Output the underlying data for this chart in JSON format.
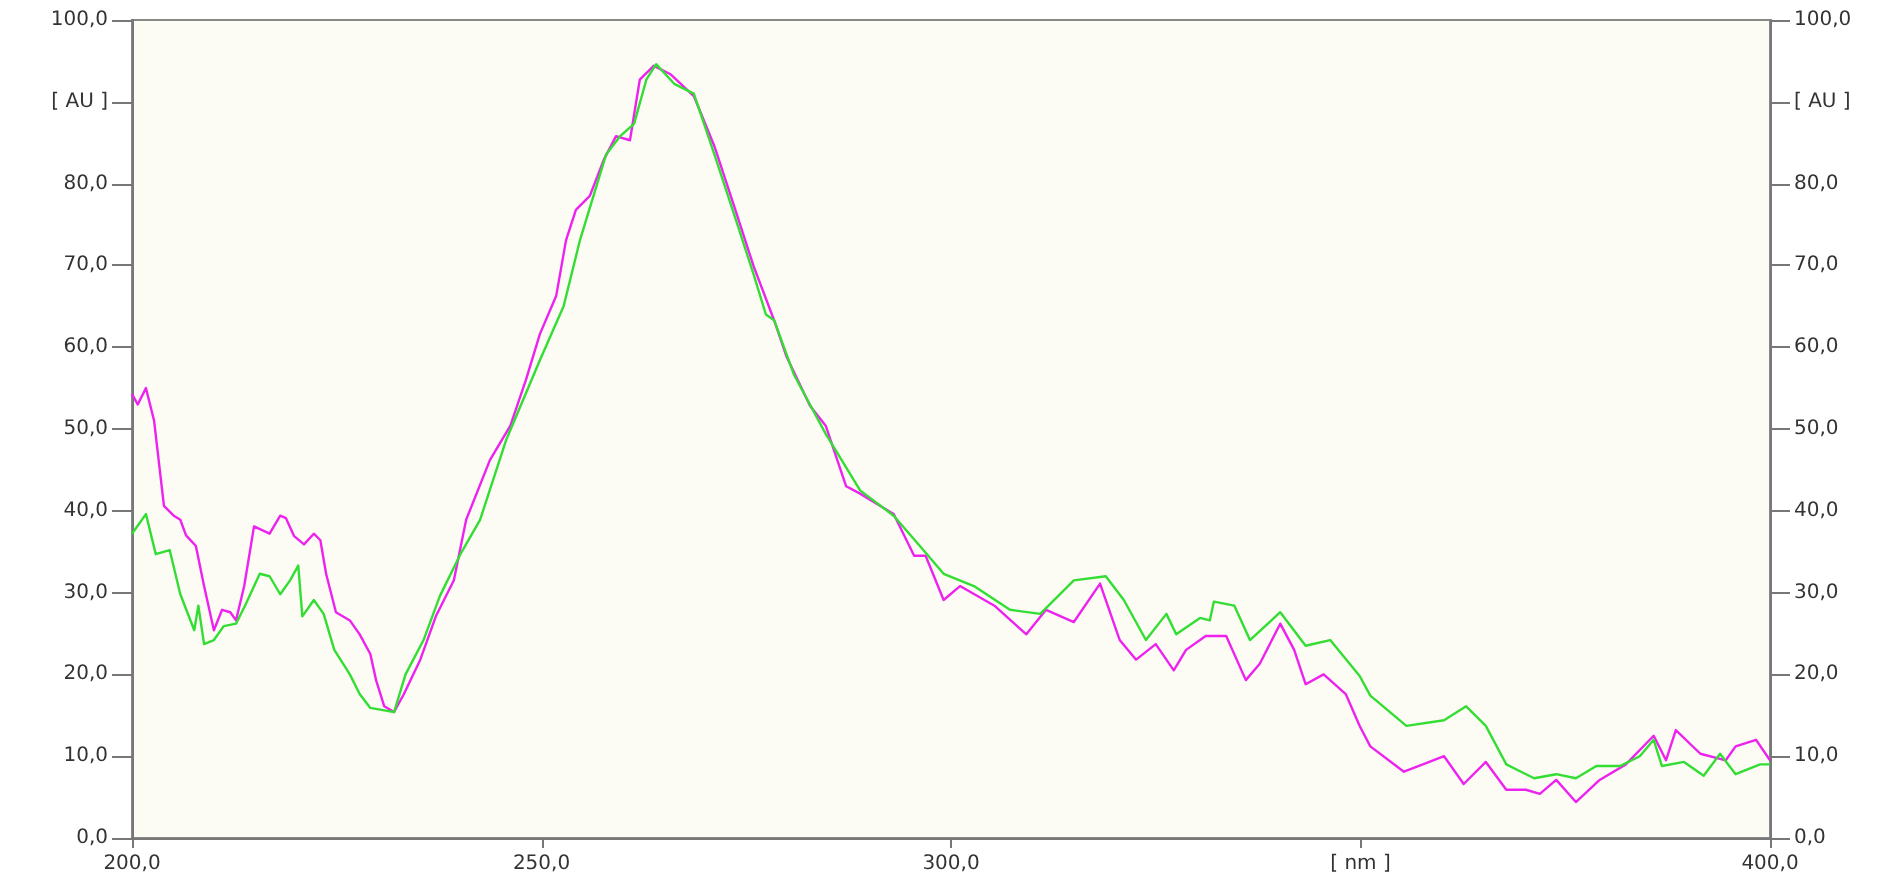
{
  "chart_data": {
    "type": "line",
    "xlim": [
      200,
      400
    ],
    "xticks": [
      {
        "value": 200,
        "label": "200,0"
      },
      {
        "value": 250,
        "label": "250,0"
      },
      {
        "value": 300,
        "label": "300,0"
      },
      {
        "value": 350,
        "label": "[ nm ]"
      },
      {
        "value": 400,
        "label": "400,0"
      }
    ],
    "ylim": [
      0,
      100
    ],
    "yticks": [
      {
        "value": 0,
        "label": "0,0"
      },
      {
        "value": 10,
        "label": "10,0"
      },
      {
        "value": 20,
        "label": "20,0"
      },
      {
        "value": 30,
        "label": "30,0"
      },
      {
        "value": 40,
        "label": "40,0"
      },
      {
        "value": 50,
        "label": "50,0"
      },
      {
        "value": 60,
        "label": "60,0"
      },
      {
        "value": 70,
        "label": "70,0"
      },
      {
        "value": 80,
        "label": "80,0"
      },
      {
        "value": 90,
        "label": "[ AU ]"
      },
      {
        "value": 100,
        "label": "100,0"
      }
    ],
    "y2lim": [
      0,
      100
    ],
    "y2ticks": [
      {
        "value": 0,
        "label": "0,0"
      },
      {
        "value": 10,
        "label": "10,0"
      },
      {
        "value": 20,
        "label": "20,0"
      },
      {
        "value": 30,
        "label": "30,0"
      },
      {
        "value": 40,
        "label": "40,0"
      },
      {
        "value": 50,
        "label": "50,0"
      },
      {
        "value": 60,
        "label": "60,0"
      },
      {
        "value": 70,
        "label": "70,0"
      },
      {
        "value": 80,
        "label": "80,0"
      },
      {
        "value": 90,
        "label": "[ AU ]"
      },
      {
        "value": 100,
        "label": "100,0"
      }
    ],
    "grid": false,
    "marker": "none",
    "line_style": "solid",
    "series": [
      {
        "color": "#ee22ee",
        "x": [
          200,
          200.7,
          201.7,
          202.7,
          203.9,
          205.1,
          205.9,
          206.6,
          207.8,
          208.8,
          210,
          211,
          212,
          212.7,
          213.7,
          214.9,
          216.8,
          218.1,
          218.8,
          219.8,
          221,
          222.2,
          223,
          223.7,
          224.9,
          226.6,
          227.8,
          229.1,
          229.8,
          230.8,
          232,
          233.2,
          235.2,
          237.1,
          239.3,
          240.8,
          243.7,
          246.2,
          248.1,
          249.8,
          251.8,
          253,
          254.2,
          255.9,
          257.6,
          259.1,
          260.8,
          262,
          263.7,
          265.7,
          268.6,
          271.1,
          273.5,
          275.9,
          278.4,
          279.9,
          282.8,
          284.7,
          287.2,
          288.9,
          293,
          295.5,
          296.9,
          299.1,
          301.1,
          305.3,
          309.2,
          311.6,
          315,
          318.2,
          320.6,
          322.6,
          325,
          327.2,
          328.7,
          331.1,
          333.6,
          336,
          337.7,
          340.2,
          341.9,
          343.3,
          345.5,
          348.2,
          349.9,
          351.2,
          355.3,
          360.2,
          362.6,
          365.3,
          367.8,
          370.2,
          371.9,
          373.9,
          376.3,
          379.2,
          382.4,
          385.8,
          387.3,
          388.5,
          391.5,
          394.6,
          395.8,
          398.3,
          400
        ],
        "values": [
          54.3,
          53,
          55,
          51,
          40.6,
          39.4,
          38.9,
          37,
          35.7,
          30.8,
          25.4,
          27.9,
          27.6,
          26.6,
          30.8,
          38.1,
          37.2,
          39.4,
          39.1,
          36.9,
          35.9,
          37.2,
          36.4,
          32.3,
          27.6,
          26.6,
          24.9,
          22.5,
          19.3,
          16.1,
          15.4,
          17.6,
          21.8,
          27.1,
          31.5,
          38.9,
          46.2,
          50.4,
          56,
          61.6,
          66.3,
          73.1,
          76.8,
          78.5,
          82.9,
          85.8,
          85.3,
          92.7,
          94.4,
          93.4,
          90.7,
          84.6,
          77.3,
          69.9,
          63.3,
          58.9,
          52.8,
          50.4,
          43,
          42.1,
          39.6,
          34.5,
          34.5,
          29.1,
          30.8,
          28.4,
          24.9,
          27.9,
          26.4,
          31.1,
          24.2,
          21.8,
          23.7,
          20.5,
          23,
          24.7,
          24.7,
          19.3,
          21.3,
          26.2,
          23,
          18.8,
          20,
          17.6,
          13.7,
          11.2,
          8.1,
          10,
          6.6,
          9.3,
          5.9,
          5.9,
          5.4,
          7.1,
          4.4,
          7.1,
          9,
          12.5,
          9.5,
          13.2,
          10.3,
          9.5,
          11.2,
          12,
          9.5
        ]
      },
      {
        "color": "#33dd33",
        "x": [
          200,
          201.7,
          202.9,
          204.6,
          205.9,
          207.6,
          208.1,
          208.8,
          210,
          211.2,
          212.7,
          213.9,
          215.6,
          216.8,
          218.1,
          219.3,
          220.3,
          220.8,
          222.2,
          223.4,
          224.7,
          226.6,
          227.8,
          229.1,
          230.8,
          232,
          233.4,
          235.6,
          237.6,
          240.1,
          242.5,
          245.7,
          249.8,
          252.7,
          254.7,
          257.9,
          259.6,
          261.3,
          262.8,
          264,
          266.2,
          268.6,
          271.1,
          273.5,
          275.9,
          277.4,
          278.4,
          280.8,
          284.7,
          288.9,
          293,
          296.2,
          299.1,
          302.8,
          307.2,
          310.9,
          315,
          318.9,
          321.1,
          323.8,
          326.3,
          327.5,
          330.4,
          331.6,
          332.1,
          334.6,
          336.5,
          340.2,
          343.3,
          346.3,
          349.9,
          351.2,
          355.6,
          360.2,
          362.9,
          365.3,
          367.8,
          371.2,
          373.9,
          376.3,
          378.8,
          381.7,
          384.1,
          385.8,
          386.8,
          389.5,
          391.9,
          393.9,
          395.8,
          398.8,
          400
        ],
        "values": [
          37.2,
          39.6,
          34.7,
          35.2,
          29.8,
          25.4,
          28.4,
          23.7,
          24.2,
          25.9,
          26.2,
          28.6,
          32.3,
          32,
          29.8,
          31.5,
          33.3,
          27.1,
          29.1,
          27.4,
          23,
          20,
          17.6,
          15.9,
          15.6,
          15.4,
          20,
          24.2,
          29.6,
          34.7,
          38.9,
          48.7,
          58.4,
          65,
          73.1,
          83.6,
          85.8,
          87.3,
          92.7,
          94.6,
          92.2,
          91,
          83.6,
          76.3,
          68.9,
          64,
          63.3,
          56.7,
          49.4,
          42.5,
          39.4,
          35.7,
          32.3,
          30.8,
          27.9,
          27.4,
          31.5,
          32,
          29.1,
          24.2,
          27.4,
          24.9,
          26.9,
          26.6,
          28.9,
          28.4,
          24.2,
          27.6,
          23.5,
          24.2,
          19.8,
          17.4,
          13.7,
          14.4,
          16.1,
          13.7,
          9,
          7.3,
          7.8,
          7.3,
          8.8,
          8.8,
          10,
          12,
          8.8,
          9.3,
          7.6,
          10.3,
          7.8,
          9,
          9
        ]
      }
    ]
  }
}
